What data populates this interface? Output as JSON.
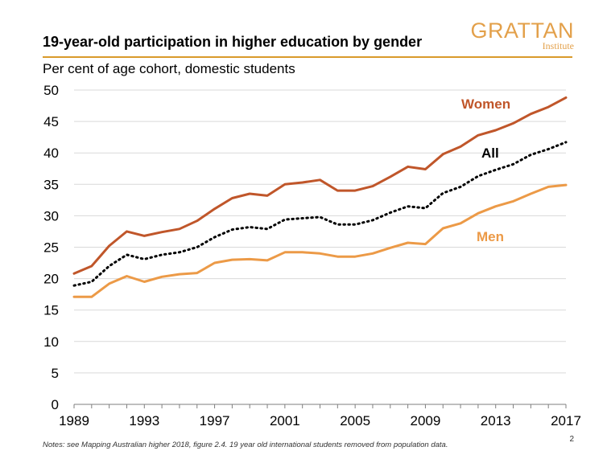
{
  "header": {
    "title": "19-year-old participation in higher education by gender",
    "logo_main": "GRATTAN",
    "logo_sub": "Institute"
  },
  "footer": {
    "notes": "Notes: see Mapping Australian higher 2018, figure 2.4. 19 year old international students removed from population data.",
    "page_number": "2"
  },
  "colors": {
    "women": "#c0562a",
    "men": "#ec9a47",
    "all": "#000000",
    "gridline": "#d9d9d9",
    "axis": "#7f7f7f",
    "title_rule": "#d99a2b",
    "logo": "#e3a04a"
  },
  "chart_data": {
    "type": "line",
    "title": "19-year-old participation in higher education by gender",
    "subtitle": "Per cent of age cohort, domestic students",
    "xlabel": "",
    "ylabel": "",
    "xlim": [
      1989,
      2017
    ],
    "ylim": [
      0,
      50
    ],
    "x_ticks": [
      1989,
      1993,
      1997,
      2001,
      2005,
      2009,
      2013,
      2017
    ],
    "y_ticks": [
      0,
      5,
      10,
      15,
      20,
      25,
      30,
      35,
      40,
      45,
      50
    ],
    "grid": true,
    "x": [
      1989,
      1990,
      1991,
      1992,
      1993,
      1994,
      1995,
      1996,
      1997,
      1998,
      1999,
      2000,
      2001,
      2002,
      2003,
      2004,
      2005,
      2006,
      2007,
      2008,
      2009,
      2010,
      2011,
      2012,
      2013,
      2014,
      2015,
      2016,
      2017
    ],
    "series": [
      {
        "name": "Women",
        "label": "Women",
        "style": "solid",
        "values": [
          20.8,
          22.0,
          25.2,
          27.5,
          26.8,
          27.4,
          27.9,
          29.2,
          31.1,
          32.8,
          33.5,
          33.2,
          35.0,
          35.3,
          35.7,
          34.0,
          34.0,
          34.7,
          36.2,
          37.8,
          37.4,
          39.8,
          41.0,
          42.8,
          43.6,
          44.7,
          46.2,
          47.3,
          48.8
        ]
      },
      {
        "name": "All",
        "label": "All",
        "style": "dotted",
        "values": [
          18.9,
          19.5,
          22.0,
          23.8,
          23.1,
          23.8,
          24.2,
          25.0,
          26.6,
          27.8,
          28.2,
          27.9,
          29.4,
          29.6,
          29.8,
          28.6,
          28.6,
          29.3,
          30.5,
          31.5,
          31.2,
          33.6,
          34.6,
          36.3,
          37.3,
          38.2,
          39.7,
          40.6,
          41.7
        ]
      },
      {
        "name": "Men",
        "label": "Men",
        "style": "solid",
        "values": [
          17.1,
          17.1,
          19.2,
          20.4,
          19.5,
          20.3,
          20.7,
          20.9,
          22.5,
          23.0,
          23.1,
          22.9,
          24.2,
          24.2,
          24.0,
          23.5,
          23.5,
          24.0,
          24.9,
          25.7,
          25.5,
          28.0,
          28.8,
          30.4,
          31.5,
          32.3,
          33.5,
          34.6,
          34.9
        ]
      }
    ],
    "annotations": [
      {
        "text": "Women",
        "series": "Women"
      },
      {
        "text": "All",
        "series": "All"
      },
      {
        "text": "Men",
        "series": "Men"
      }
    ]
  }
}
